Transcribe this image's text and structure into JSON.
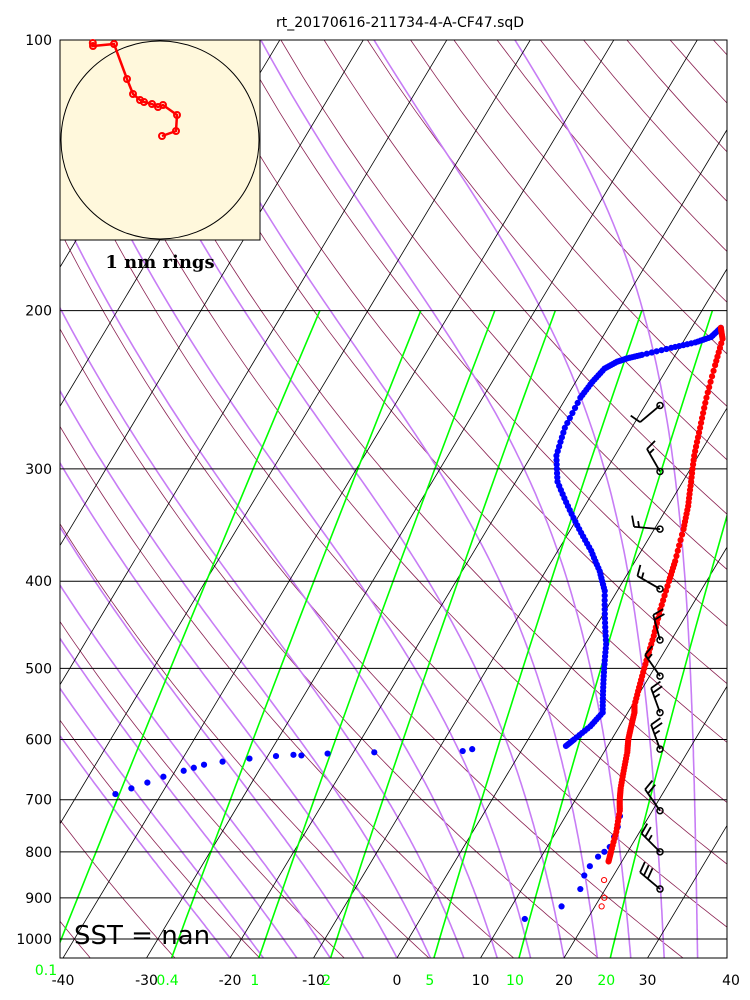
{
  "chart_data": {
    "type": "scatter",
    "title": "rt_20170616-211734-4-A-CF47.sqD",
    "x_axis": {
      "ticks": [
        -40,
        -30,
        -20,
        -10,
        0,
        10,
        20,
        30,
        40
      ],
      "range": [
        -40,
        40
      ]
    },
    "y_axis": {
      "scale": "log",
      "range": [
        100,
        1050
      ],
      "ticks": [
        100,
        200,
        300,
        400,
        500,
        600,
        700,
        800,
        900,
        1000
      ]
    },
    "mixing_ratio_labels": [
      "0.1",
      "0.4",
      "1",
      "2",
      "5",
      "10",
      "20"
    ],
    "mixing_ratio_values": [
      0.1,
      0.4,
      1,
      2,
      5,
      10,
      20
    ],
    "temperature_profile": [
      [
        209,
        -6.5
      ],
      [
        215,
        -5.5
      ],
      [
        230,
        -4.5
      ],
      [
        250,
        -3.2
      ],
      [
        270,
        -1.8
      ],
      [
        290,
        -0.5
      ],
      [
        310,
        1.0
      ],
      [
        330,
        2.4
      ],
      [
        350,
        3.5
      ],
      [
        380,
        4.8
      ],
      [
        400,
        5.5
      ],
      [
        430,
        6.5
      ],
      [
        460,
        7.6
      ],
      [
        490,
        8.5
      ],
      [
        520,
        9.4
      ],
      [
        550,
        10.3
      ],
      [
        560,
        10.8
      ],
      [
        580,
        11.4
      ],
      [
        600,
        12.0
      ],
      [
        620,
        12.8
      ],
      [
        650,
        13.7
      ],
      [
        680,
        14.6
      ],
      [
        700,
        15.3
      ],
      [
        720,
        16.1
      ],
      [
        760,
        17.2
      ],
      [
        800,
        18.0
      ],
      [
        820,
        18.4
      ]
    ],
    "temperature_sparse": [
      [
        860,
        19.2
      ],
      [
        900,
        20.5
      ],
      [
        920,
        20.8
      ]
    ],
    "dewpoint_profile": [
      [
        209,
        -6.5
      ],
      [
        214,
        -7.0
      ],
      [
        217,
        -8.5
      ],
      [
        220,
        -11.0
      ],
      [
        224,
        -14.0
      ],
      [
        226,
        -15.5
      ],
      [
        228,
        -16.5
      ],
      [
        232,
        -17.5
      ],
      [
        240,
        -18.0
      ],
      [
        250,
        -18.3
      ],
      [
        270,
        -18.0
      ],
      [
        290,
        -17.0
      ],
      [
        310,
        -15.0
      ],
      [
        330,
        -12.0
      ],
      [
        350,
        -9.0
      ],
      [
        370,
        -6.0
      ],
      [
        390,
        -3.5
      ],
      [
        410,
        -1.5
      ],
      [
        440,
        0.5
      ],
      [
        470,
        2.5
      ],
      [
        500,
        4.0
      ],
      [
        530,
        5.5
      ],
      [
        560,
        7.0
      ],
      [
        580,
        6.5
      ],
      [
        600,
        5.5
      ],
      [
        610,
        5.0
      ]
    ],
    "dewpoint_scattered": [
      [
        615,
        -6.0
      ],
      [
        618,
        -7.0
      ],
      [
        620,
        -17.5
      ],
      [
        622,
        -23.0
      ],
      [
        624,
        -27.0
      ],
      [
        625,
        -26.0
      ],
      [
        626,
        -29.0
      ],
      [
        630,
        -32.0
      ],
      [
        635,
        -35.0
      ],
      [
        640,
        -37.0
      ],
      [
        645,
        -38.0
      ],
      [
        650,
        -39.0
      ],
      [
        660,
        -41.0
      ],
      [
        670,
        -42.5
      ],
      [
        680,
        -44.0
      ],
      [
        690,
        -45.5
      ],
      [
        730,
        16.5
      ],
      [
        750,
        17.0
      ],
      [
        770,
        17.3
      ],
      [
        790,
        17.5
      ],
      [
        800,
        17.2
      ],
      [
        810,
        16.8
      ],
      [
        830,
        16.5
      ],
      [
        850,
        16.5
      ],
      [
        880,
        17.0
      ],
      [
        920,
        16.0
      ],
      [
        950,
        12.5
      ]
    ],
    "hodograph": {
      "caption": "1 nm rings",
      "track": [
        [
          -33.6,
          48.5
        ],
        [
          -33.5,
          47.0
        ],
        [
          -23,
          48.0
        ],
        [
          -16.5,
          30.5
        ],
        [
          -13.5,
          23.0
        ],
        [
          -10,
          20.0
        ],
        [
          -8,
          19.0
        ],
        [
          -4,
          18.0
        ],
        [
          -1,
          16.5
        ],
        [
          1.5,
          17.5
        ],
        [
          8.5,
          12.5
        ],
        [
          8,
          4.5
        ],
        [
          1,
          2.0
        ]
      ]
    },
    "wind_barbs": [
      {
        "p": 255,
        "dir": 230,
        "kt": 10
      },
      {
        "p": 302,
        "dir": 330,
        "kt": 15
      },
      {
        "p": 350,
        "dir": 275,
        "kt": 15
      },
      {
        "p": 408,
        "dir": 300,
        "kt": 15
      },
      {
        "p": 465,
        "dir": 345,
        "kt": 20
      },
      {
        "p": 510,
        "dir": 325,
        "kt": 15
      },
      {
        "p": 560,
        "dir": 340,
        "kt": 25
      },
      {
        "p": 615,
        "dir": 340,
        "kt": 25
      },
      {
        "p": 720,
        "dir": 325,
        "kt": 20
      },
      {
        "p": 800,
        "dir": 315,
        "kt": 25
      },
      {
        "p": 880,
        "dir": 310,
        "kt": 30
      }
    ],
    "annotation": "SST =  nan"
  }
}
